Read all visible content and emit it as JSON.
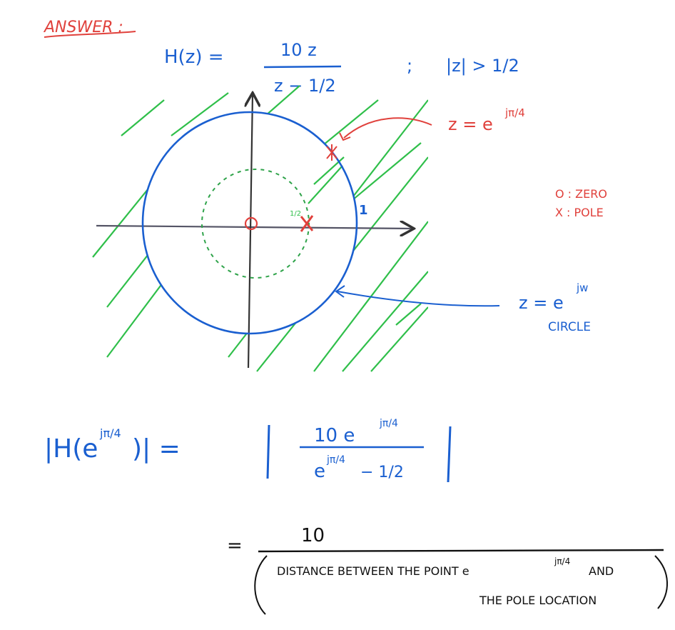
{
  "colors": {
    "blue": "#1a5fd0",
    "red": "#e0413c",
    "green": "#2fbf4a",
    "black": "#111111",
    "axis": "#555566"
  },
  "header": {
    "answer_label": "ANSWER :"
  },
  "transfer_function": {
    "lhs": "H(z) =",
    "numerator": "10 z",
    "denominator": "z − 1/2",
    "separator": ";",
    "roc": "|z| > 1/2"
  },
  "plot": {
    "unit_label": "1",
    "pole_label": "1/2"
  },
  "legend": {
    "zero": "O : ZERO",
    "pole": "X : POLE"
  },
  "annotations": {
    "point": "z = e",
    "point_exp": "jπ/4",
    "circle_line1": "z = e",
    "circle_exp": "jw",
    "circle_line2": "CIRCLE"
  },
  "evaluation": {
    "lhs_a": "|H(e",
    "lhs_exp": "jπ/4",
    "lhs_b": ")| =",
    "numerator": "10  e",
    "numerator_exp": "jπ/4",
    "denominator": "e",
    "denominator_exp": "jπ/4",
    "denominator_tail": " − 1/2"
  },
  "result": {
    "equals": "=",
    "numerator": "10",
    "denominator_line1": "DISTANCE BETWEEN THE POINT e",
    "denominator_exp": "jπ/4",
    "denominator_and": " AND",
    "denominator_line2": "THE POLE LOCATION"
  }
}
